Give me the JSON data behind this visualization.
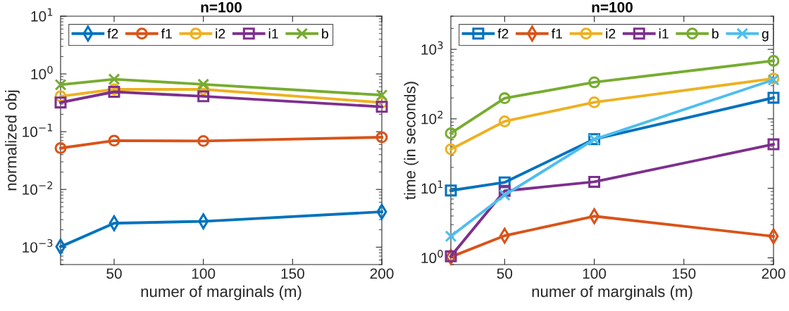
{
  "chart_data": [
    {
      "type": "line",
      "title": "n=100",
      "xlabel": "numer of marginals (m)",
      "ylabel": "normalized obj",
      "x": [
        20,
        50,
        100,
        200
      ],
      "xlim": [
        20,
        200
      ],
      "xticks": [
        50,
        100,
        150,
        200
      ],
      "log": "y",
      "ylim": [
        0.0005,
        10
      ],
      "yticks": [
        {
          "value": 0.001,
          "label": "10$^{−3}$"
        },
        {
          "value": 0.01,
          "label": "10$^{−2}$"
        },
        {
          "value": 0.1,
          "label": "10$^{−1}$"
        },
        {
          "value": 1,
          "label": "10$^{0}$"
        },
        {
          "value": 10,
          "label": "10$^{1}$"
        }
      ],
      "grid": false,
      "legend": "top left",
      "series": [
        {
          "name": "f2",
          "color": "#0072bd",
          "marker": "diamond",
          "values": [
            0.00102,
            0.0026,
            0.0028,
            0.0041
          ]
        },
        {
          "name": "f1",
          "color": "#d95319",
          "marker": "circle",
          "values": [
            0.052,
            0.07,
            0.069,
            0.08
          ]
        },
        {
          "name": "i2",
          "color": "#edb120",
          "marker": "circle",
          "values": [
            0.41,
            0.54,
            0.54,
            0.32
          ]
        },
        {
          "name": "i1",
          "color": "#7e2f8e",
          "marker": "square",
          "values": [
            0.32,
            0.49,
            0.41,
            0.27
          ]
        },
        {
          "name": "b",
          "color": "#77ac30",
          "marker": "cross",
          "values": [
            0.65,
            0.81,
            0.66,
            0.43
          ]
        }
      ]
    },
    {
      "type": "line",
      "title": "n=100",
      "xlabel": "numer of marginals (m)",
      "ylabel": "time (in seconds)",
      "x": [
        20,
        50,
        100,
        200
      ],
      "xlim": [
        20,
        200
      ],
      "xticks": [
        50,
        100,
        150,
        200
      ],
      "log": "y",
      "ylim": [
        0.8,
        3000
      ],
      "yticks": [
        {
          "value": 1,
          "label": "10$^{0}$"
        },
        {
          "value": 10,
          "label": "10$^{1}$"
        },
        {
          "value": 100,
          "label": "10$^{2}$"
        },
        {
          "value": 1000,
          "label": "10$^{3}$"
        }
      ],
      "grid": false,
      "legend": "top left",
      "series": [
        {
          "name": "f2",
          "color": "#0072bd",
          "marker": "square",
          "values": [
            9.3,
            12.2,
            51,
            201
          ]
        },
        {
          "name": "f1",
          "color": "#d95319",
          "marker": "diamond",
          "values": [
            1.03,
            2.08,
            3.97,
            2.04
          ]
        },
        {
          "name": "i2",
          "color": "#edb120",
          "marker": "circle",
          "values": [
            36.5,
            92,
            173,
            380
          ]
        },
        {
          "name": "i1",
          "color": "#7e2f8e",
          "marker": "square",
          "values": [
            1.05,
            9.2,
            12.4,
            43
          ]
        },
        {
          "name": "b",
          "color": "#77ac30",
          "marker": "circle",
          "values": [
            62,
            198,
            336,
            684
          ]
        },
        {
          "name": "g",
          "color": "#4dbeee",
          "marker": "cross",
          "values": [
            2.04,
            8.0,
            50.5,
            365
          ]
        }
      ]
    }
  ]
}
